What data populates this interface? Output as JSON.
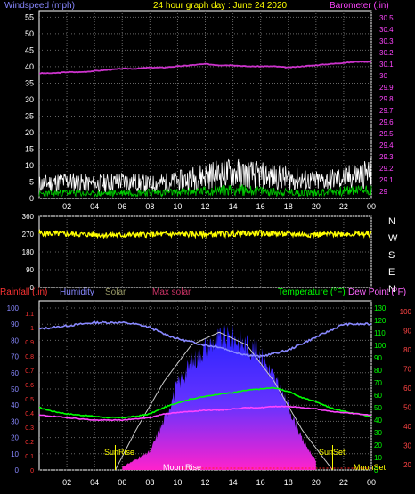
{
  "chart_data": [
    {
      "type": "line",
      "title": "24 hour graph day : June 24 2020",
      "x_ticks": [
        "02",
        "04",
        "06",
        "08",
        "10",
        "12",
        "14",
        "16",
        "18",
        "20",
        "22",
        "00"
      ],
      "y_left_label": "Windspeed (mph)",
      "y_left_ticks": [
        "0",
        "5",
        "10",
        "15",
        "20",
        "25",
        "30",
        "35",
        "40",
        "45",
        "50",
        "55"
      ],
      "y_left_range": [
        0,
        57
      ],
      "y_right_label": "Barometer (.in)",
      "y_right_ticks": [
        "29",
        "29.1",
        "29.2",
        "29.3",
        "29.4",
        "29.5",
        "29.6",
        "29.7",
        "29.8",
        "29.9",
        "30",
        "30.1",
        "30.2",
        "30.3",
        "30.4",
        "30.5"
      ],
      "y_right_range": [
        28.94,
        30.56
      ],
      "grid": true,
      "series": [
        {
          "name": "Barometer",
          "color": "#cc33cc",
          "hours": [
            0,
            1,
            2,
            3,
            4,
            5,
            6,
            7,
            8,
            9,
            10,
            11,
            12,
            13,
            14,
            15,
            16,
            17,
            18,
            19,
            20,
            21,
            22,
            23,
            24
          ],
          "values": [
            30.02,
            30.02,
            30.03,
            30.03,
            30.04,
            30.05,
            30.06,
            30.06,
            30.07,
            30.07,
            30.08,
            30.09,
            30.1,
            30.09,
            30.09,
            30.08,
            30.08,
            30.08,
            30.07,
            30.08,
            30.09,
            30.1,
            30.11,
            30.12,
            30.12
          ]
        },
        {
          "name": "Wind gust",
          "color": "#ffffff",
          "hours": [
            0,
            2,
            4,
            6,
            8,
            10,
            12,
            14,
            16,
            18,
            20,
            22,
            24
          ],
          "values": [
            5,
            6,
            5,
            6,
            5,
            6,
            8,
            9,
            8,
            7,
            6,
            7,
            9
          ]
        },
        {
          "name": "Wind average",
          "color": "#00cc00",
          "hours": [
            0,
            2,
            4,
            6,
            8,
            10,
            12,
            14,
            16,
            18,
            20,
            22,
            24
          ],
          "values": [
            1.5,
            2,
            1.5,
            2,
            2,
            2,
            2.5,
            3,
            2.5,
            2,
            2,
            2.5,
            3
          ]
        }
      ]
    },
    {
      "type": "line",
      "x_ticks": [
        "02",
        "04",
        "06",
        "08",
        "10",
        "12",
        "14",
        "16",
        "18",
        "20",
        "22",
        "00"
      ],
      "y_ticks": [
        "0",
        "90",
        "180",
        "270",
        "360"
      ],
      "y_range": [
        0,
        360
      ],
      "direction_labels": [
        "N",
        "W",
        "S",
        "E",
        "N"
      ],
      "grid": true,
      "series": [
        {
          "name": "Wind direction",
          "color": "#ffff00",
          "hours": [
            0,
            2,
            4,
            6,
            8,
            10,
            12,
            14,
            16,
            18,
            20,
            22,
            24
          ],
          "values": [
            275,
            270,
            268,
            265,
            268,
            270,
            268,
            272,
            275,
            270,
            268,
            272,
            270
          ]
        }
      ]
    },
    {
      "type": "area",
      "labels": {
        "rainfall": "Rainfall (.in)",
        "humidity": "Humidity",
        "solar": "Solar",
        "max_solar": "Max solar",
        "temperature": "Temperature (°F)",
        "dew_point": "Dew Point (°F)"
      },
      "x_ticks": [
        "02",
        "04",
        "06",
        "08",
        "10",
        "12",
        "14",
        "16",
        "18",
        "20",
        "22",
        "00"
      ],
      "rain_ticks": [
        "0",
        "0.1",
        "0.2",
        "0.3",
        "0.4",
        "0.5",
        "0.6",
        "0.7",
        "0.8",
        "0.9",
        "1",
        "1.1"
      ],
      "humidity_ticks": [
        "0",
        "10",
        "20",
        "30",
        "40",
        "50",
        "60",
        "70",
        "80",
        "90",
        "100"
      ],
      "temp_ticks": [
        "0",
        "10",
        "20",
        "30",
        "40",
        "50",
        "60",
        "70",
        "80",
        "90",
        "100",
        "110",
        "120",
        "130"
      ],
      "dew_ticks": [
        "20",
        "30",
        "40",
        "50",
        "60",
        "70",
        "80",
        "90",
        "100"
      ],
      "annotations": {
        "sunrise": "SunRise",
        "sunset": "SunSet",
        "moonrise": "Moon Rise",
        "moonset": "MoonSet"
      },
      "sunrise_hour": 5.5,
      "sunset_hour": 21.2,
      "moonrise_hour": 10.2,
      "grid": true,
      "series": [
        {
          "name": "Humidity",
          "color": "#8888ff",
          "hours": [
            0,
            1,
            2,
            3,
            4,
            5,
            6,
            7,
            8,
            9,
            10,
            11,
            12,
            13,
            14,
            15,
            16,
            17,
            18,
            19,
            20,
            21,
            22,
            23,
            24
          ],
          "values": [
            87,
            88,
            89,
            90,
            91,
            91,
            91,
            90,
            88,
            84,
            81,
            79,
            77,
            76,
            73,
            71,
            70,
            72,
            74,
            78,
            82,
            86,
            90,
            90,
            90
          ]
        },
        {
          "name": "Temperature",
          "color": "#00ff00",
          "hours": [
            0,
            1,
            2,
            3,
            4,
            5,
            6,
            7,
            8,
            9,
            10,
            11,
            12,
            13,
            14,
            15,
            16,
            17,
            18,
            19,
            20,
            21,
            22,
            23,
            24
          ],
          "values": [
            50,
            47,
            45,
            44,
            43,
            42,
            42,
            43,
            45,
            50,
            54,
            57,
            59,
            61,
            62,
            64,
            65,
            66,
            63,
            58,
            55,
            50,
            47,
            45,
            43
          ]
        },
        {
          "name": "Dew point",
          "color": "#ff44ff",
          "hours": [
            0,
            1,
            2,
            3,
            4,
            5,
            6,
            7,
            8,
            9,
            10,
            11,
            12,
            13,
            14,
            15,
            16,
            17,
            18,
            19,
            20,
            21,
            22,
            23,
            24
          ],
          "values": [
            44,
            43,
            42,
            41,
            40,
            40,
            40,
            41,
            42,
            45,
            46,
            47,
            48,
            48,
            49,
            50,
            50,
            51,
            51,
            50,
            49,
            47,
            46,
            45,
            44
          ]
        },
        {
          "name": "Max solar",
          "color": "#cccccc",
          "hours": [
            5.5,
            7,
            9,
            11,
            13,
            15,
            17,
            19,
            21.2
          ],
          "values": [
            0,
            250,
            550,
            780,
            860,
            780,
            550,
            250,
            0
          ]
        },
        {
          "name": "Solar",
          "color": "#4444ff",
          "hours": [
            6,
            8,
            9,
            10,
            11,
            12,
            13,
            14,
            15,
            16,
            17,
            18,
            19,
            20
          ],
          "values": [
            20,
            120,
            320,
            560,
            700,
            810,
            860,
            870,
            820,
            760,
            600,
            420,
            200,
            60
          ]
        }
      ]
    }
  ]
}
